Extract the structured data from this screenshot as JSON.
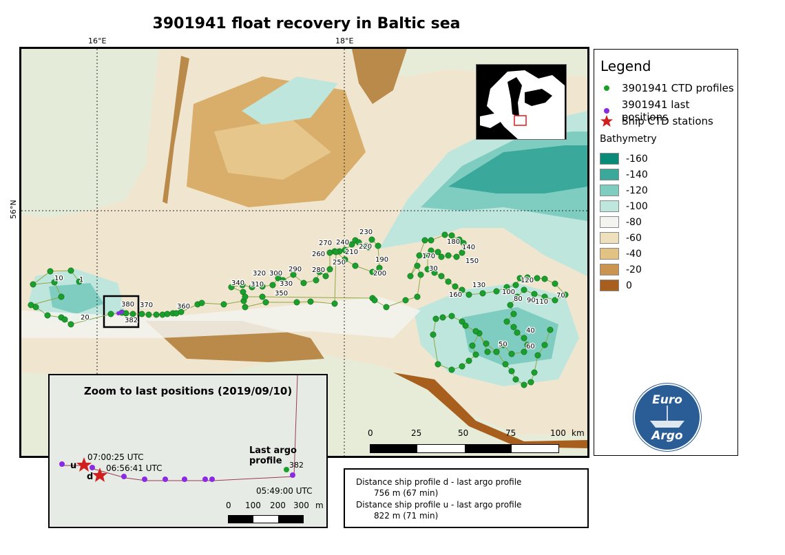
{
  "title": "3901941 float recovery in Baltic sea",
  "grid_labels": {
    "lon1": "16°E",
    "lon2": "18°E",
    "lat1": "56°N"
  },
  "profile_labels": [
    {
      "text": "1"
    },
    {
      "text": "10"
    },
    {
      "text": "20"
    },
    {
      "text": "30"
    },
    {
      "text": "40"
    },
    {
      "text": "50"
    },
    {
      "text": "60"
    },
    {
      "text": "70"
    },
    {
      "text": "80"
    },
    {
      "text": "90"
    },
    {
      "text": "100"
    },
    {
      "text": "110"
    },
    {
      "text": "120"
    },
    {
      "text": "130"
    },
    {
      "text": "140"
    },
    {
      "text": "150"
    },
    {
      "text": "160"
    },
    {
      "text": "170"
    },
    {
      "text": "180"
    },
    {
      "text": "190"
    },
    {
      "text": "200"
    },
    {
      "text": "210"
    },
    {
      "text": "220"
    },
    {
      "text": "230"
    },
    {
      "text": "240"
    },
    {
      "text": "250"
    },
    {
      "text": "260"
    },
    {
      "text": "270"
    },
    {
      "text": "280"
    },
    {
      "text": "290"
    },
    {
      "text": "300"
    },
    {
      "text": "310"
    },
    {
      "text": "320"
    },
    {
      "text": "330"
    },
    {
      "text": "340"
    },
    {
      "text": "350"
    },
    {
      "text": "360"
    },
    {
      "text": "370"
    },
    {
      "text": "380"
    },
    {
      "text": "382"
    }
  ],
  "legend": {
    "title": "Legend",
    "items": [
      {
        "label": "3901941 CTD profiles",
        "color": "#1a9e2c",
        "symbol": "green-dot"
      },
      {
        "label": "3901941 last positions",
        "color": "#8a2be2",
        "symbol": "purple-dot"
      },
      {
        "label": "Ship CTD stations",
        "color": "#d11e1e",
        "symbol": "red-star"
      }
    ],
    "bathymetry_title": "Bathymetry",
    "bathymetry": [
      {
        "label": "-160",
        "color": "#0a8a78"
      },
      {
        "label": "-140",
        "color": "#3aa89a"
      },
      {
        "label": "-120",
        "color": "#7fcdc1"
      },
      {
        "label": "-100",
        "color": "#bfe6dd"
      },
      {
        "label": "-80",
        "color": "#f3f3ef"
      },
      {
        "label": "-60",
        "color": "#efe0bd"
      },
      {
        "label": "-40",
        "color": "#e2c383"
      },
      {
        "label": "-20",
        "color": "#c99550"
      },
      {
        "label": "0",
        "color": "#a85f1e"
      }
    ]
  },
  "inset": {
    "title": "Zoom to last positions (2019/09/10)",
    "last_argo_label": "Last argo profile",
    "time_u": "07:00:25 UTC",
    "time_d": "06:56:41 UTC",
    "time_last": "05:49:00 UTC",
    "label_u": "u",
    "label_d": "d",
    "label_382": "382",
    "scale": {
      "ticks": [
        "0",
        "100",
        "200",
        "300"
      ],
      "unit": "m"
    }
  },
  "main_scale": {
    "ticks": [
      "0",
      "25",
      "50",
      "75",
      "100"
    ],
    "unit": "km"
  },
  "info": {
    "line1": "Distance ship profile d - last argo profile",
    "line2": "756 m (67 min)",
    "line3": "Distance ship profile u - last argo profile",
    "line4": "822 m (71 min)"
  },
  "logo": {
    "top": "Euro",
    "bottom": "Argo"
  }
}
